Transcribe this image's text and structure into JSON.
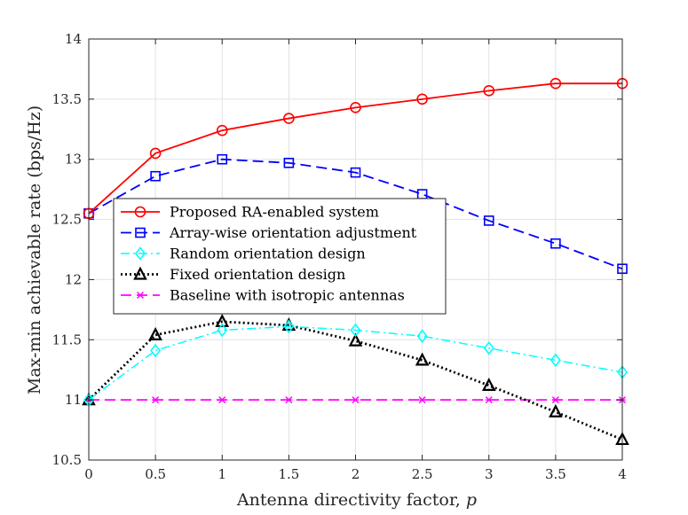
{
  "chart_data": {
    "type": "line",
    "xlabel": "Antenna directivity factor, ",
    "xlabel_var": "p",
    "ylabel": "Max-min achievable rate (bps/Hz)",
    "xlim": [
      0,
      4
    ],
    "ylim": [
      10.5,
      14
    ],
    "grid": true,
    "legend_position": "center-left",
    "xticks": [
      0,
      0.5,
      1,
      1.5,
      2,
      2.5,
      3,
      3.5,
      4
    ],
    "xtick_labels": [
      "0",
      "0.5",
      "1",
      "1.5",
      "2",
      "2.5",
      "3",
      "3.5",
      "4"
    ],
    "yticks": [
      10.5,
      11,
      11.5,
      12,
      12.5,
      13,
      13.5,
      14
    ],
    "ytick_labels": [
      "10.5",
      "11",
      "11.5",
      "12",
      "12.5",
      "13",
      "13.5",
      "14"
    ],
    "x": [
      0,
      0.5,
      1,
      1.5,
      2,
      2.5,
      3,
      3.5,
      4
    ],
    "series": [
      {
        "name": "Proposed RA-enabled system",
        "color": "#ff0000",
        "dash": "solid",
        "marker": "circle",
        "values": [
          12.55,
          13.05,
          13.24,
          13.34,
          13.43,
          13.5,
          13.57,
          13.63,
          13.63
        ]
      },
      {
        "name": "Array-wise orientation adjustment",
        "color": "#0000ff",
        "dash": "dashed",
        "marker": "square",
        "values": [
          12.55,
          12.86,
          13.0,
          12.97,
          12.89,
          12.71,
          12.49,
          12.3,
          12.09
        ]
      },
      {
        "name": "Random orientation design",
        "color": "#00ffff",
        "dash": "dashdot",
        "marker": "diamond",
        "values": [
          11.0,
          11.41,
          11.58,
          11.61,
          11.58,
          11.53,
          11.43,
          11.33,
          11.23
        ]
      },
      {
        "name": "Fixed orientation design",
        "color": "#000000",
        "dash": "dotted",
        "marker": "triangle",
        "values": [
          11.0,
          11.54,
          11.65,
          11.62,
          11.49,
          11.33,
          11.12,
          10.9,
          10.67
        ]
      },
      {
        "name": "Baseline with isotropic antennas",
        "color": "#ff00ff",
        "dash": "dashed",
        "marker": "x",
        "values": [
          11.0,
          11.0,
          11.0,
          11.0,
          11.0,
          11.0,
          11.0,
          11.0,
          11.0
        ]
      }
    ]
  }
}
